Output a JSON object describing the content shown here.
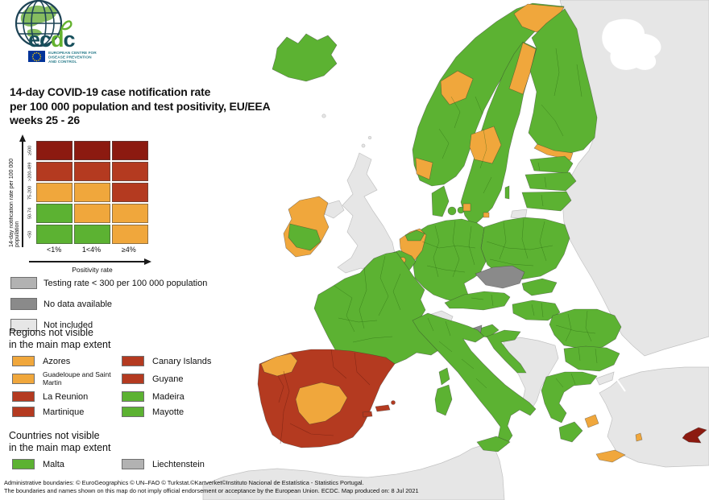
{
  "logo": {
    "wordmark_parts": [
      "ec",
      "d",
      "c"
    ],
    "org_lines": [
      "EUROPEAN CENTRE FOR",
      "DISEASE PREVENTION",
      "AND CONTROL"
    ]
  },
  "title": {
    "lines": [
      "14-day COVID-19 case notification rate",
      "per 100 000 population and test positivity, EU/EEA",
      "weeks 25 - 26"
    ]
  },
  "matrix": {
    "y_axis_label": "14-day notification rate per 100 000 population",
    "x_axis_label": "Positivity rate",
    "rows": [
      "≥500",
      ">200-499",
      "75-200",
      "50-74",
      "<50"
    ],
    "cols": [
      "<1%",
      "1<4%",
      "≥4%"
    ],
    "cells": [
      [
        "darkred",
        "darkred",
        "darkred"
      ],
      [
        "red",
        "red",
        "red"
      ],
      [
        "orange",
        "orange",
        "red"
      ],
      [
        "green",
        "orange",
        "orange"
      ],
      [
        "green",
        "green",
        "orange"
      ]
    ]
  },
  "colors": {
    "green": "#5cb232",
    "orange": "#f0a73c",
    "red": "#b43a20",
    "darkred": "#8c1a10",
    "gray_testing": "#b2b2b2",
    "gray_nodata": "#8a8a8a",
    "gray_notincluded": "#e6e6e6"
  },
  "status_legend": [
    {
      "label": "Testing rate < 300 per 100 000 population",
      "color": "gray_testing"
    },
    {
      "label": "No data available",
      "color": "gray_nodata"
    },
    {
      "label": "Not included",
      "color": "gray_notincluded"
    }
  ],
  "regions_section": {
    "heading_lines": [
      "Regions not visible",
      "in the main map extent"
    ],
    "items": [
      {
        "label": "Azores",
        "color": "orange",
        "small": false
      },
      {
        "label": "Canary Islands",
        "color": "red",
        "small": false
      },
      {
        "label": "Guadeloupe and Saint Martin",
        "color": "orange",
        "small": true
      },
      {
        "label": "Guyane",
        "color": "red",
        "small": false
      },
      {
        "label": "La Reunion",
        "color": "red",
        "small": false
      },
      {
        "label": "Madeira",
        "color": "green",
        "small": false
      },
      {
        "label": "Martinique",
        "color": "red",
        "small": false
      },
      {
        "label": "Mayotte",
        "color": "green",
        "small": false
      }
    ]
  },
  "countries_section": {
    "heading_lines": [
      "Countries not visible",
      "in the main map extent"
    ],
    "items": [
      {
        "label": "Malta",
        "color": "green",
        "small": false
      },
      {
        "label": "Liechtenstein",
        "color": "gray_testing",
        "small": false
      }
    ]
  },
  "footer_lines": [
    "Administrative boundaries: © EuroGeographics © UN–FAO © Turkstat.©Kartverket©Instituto Nacional de Estatística - Statistics Portugal.",
    "The boundaries and names shown on this map do not imply official endorsement or acceptance by the European Union. ECDC. Map produced on: 8 Jul 2021"
  ],
  "map_regions": {
    "east_mass": "gray_notincluded",
    "turkey": "gray_notincluded",
    "turkey_eu": "gray_notincluded",
    "north_africa": "gray_notincluded",
    "uk": "gray_notincluded",
    "northern_ireland": "gray_notincluded",
    "switzerland": "gray_notincluded",
    "kaliningrad": "gray_notincluded",
    "west_balkans": "gray_notincluded",
    "islets": "gray_notincluded",
    "czechia": "gray_nodata",
    "slovenia_west": "gray_nodata",
    "iceland": "green",
    "norway": "green",
    "norway_north": "orange",
    "norway_mid": "orange",
    "norway_south": "orange",
    "sweden": "green",
    "sweden_north": "orange",
    "sweden_mid": "orange",
    "finland": "green",
    "finland_south": "orange",
    "denmark": "green",
    "denmark_islands": "green",
    "copenhagen": "orange",
    "bornholm": "orange",
    "estonia": "green",
    "latvia": "green",
    "lithuania": "green",
    "gotland": "green",
    "poland": "green",
    "germany": "green",
    "netherlands": "orange",
    "netherlands_north": "green",
    "belgium": "green",
    "brussels": "orange",
    "france": "green",
    "corsica": "green",
    "austria": "green",
    "slovakia": "green",
    "hungary": "green",
    "slovenia": "green",
    "croatia": "green",
    "italy": "green",
    "sicily": "green",
    "sardinia": "green",
    "romania": "green",
    "bulgaria": "green",
    "greece": "green",
    "peloponnese": "green",
    "attica": "orange",
    "crete": "orange",
    "rhodes": "orange",
    "cyprus": "darkred",
    "ireland": "orange",
    "ireland_south": "green",
    "iberia": "red",
    "galicia": "orange",
    "castilla": "orange",
    "balearics": "red"
  }
}
